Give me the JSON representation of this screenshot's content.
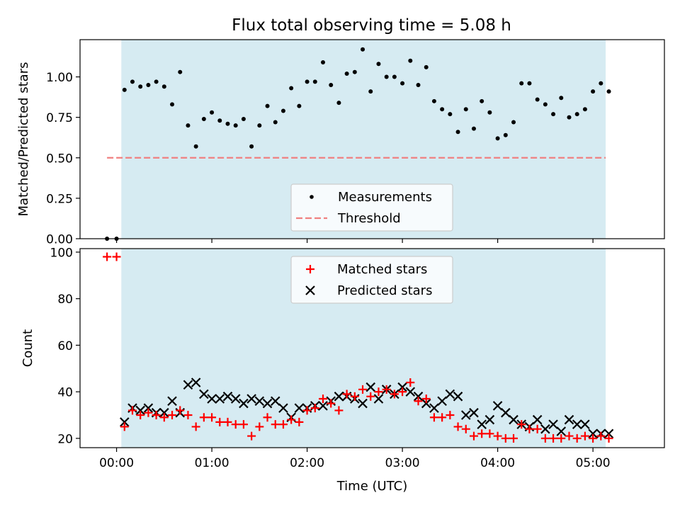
{
  "title": "Flux total observing time = 5.08 h",
  "chart_data": [
    {
      "type": "scatter",
      "ylabel": "Matched/Predicted stars",
      "ylim": [
        0,
        1.23
      ],
      "yticks": [
        0.0,
        0.25,
        0.5,
        0.75,
        1.0
      ],
      "ytick_labels": [
        "0.00",
        "0.25",
        "0.50",
        "0.75",
        "1.00"
      ],
      "observing_window": [
        "00:03",
        "05:08"
      ],
      "threshold": {
        "name": "Threshold",
        "value": 0.5,
        "x_range": [
          "-00:06",
          "05:08"
        ],
        "color": "#f08080"
      },
      "legend": {
        "placement": "lower center",
        "entries": [
          "Measurements",
          "Threshold"
        ]
      },
      "series": [
        {
          "name": "Measurements",
          "color": "#000000",
          "x": [
            "-00:06",
            "-00:00",
            "00:05",
            "00:10",
            "00:15",
            "00:20",
            "00:25",
            "00:30",
            "00:35",
            "00:40",
            "00:45",
            "00:50",
            "00:55",
            "01:00",
            "01:05",
            "01:10",
            "01:15",
            "01:20",
            "01:25",
            "01:30",
            "01:35",
            "01:40",
            "01:45",
            "01:50",
            "01:55",
            "02:00",
            "02:05",
            "02:10",
            "02:15",
            "02:20",
            "02:25",
            "02:30",
            "02:35",
            "02:40",
            "02:45",
            "02:50",
            "02:55",
            "03:00",
            "03:05",
            "03:10",
            "03:15",
            "03:20",
            "03:25",
            "03:30",
            "03:35",
            "03:40",
            "03:45",
            "03:50",
            "03:55",
            "04:00",
            "04:05",
            "04:10",
            "04:15",
            "04:20",
            "04:25",
            "04:30",
            "04:35",
            "04:40",
            "04:45",
            "04:50",
            "04:55",
            "05:00",
            "05:05",
            "05:10"
          ],
          "y": [
            0.0,
            0.0,
            0.92,
            0.97,
            0.94,
            0.95,
            0.97,
            0.94,
            0.83,
            1.03,
            0.7,
            0.57,
            0.74,
            0.78,
            0.73,
            0.71,
            0.7,
            0.74,
            0.57,
            0.7,
            0.82,
            0.72,
            0.79,
            0.93,
            0.82,
            0.97,
            0.97,
            1.09,
            0.95,
            0.84,
            1.02,
            1.03,
            1.17,
            0.91,
            1.08,
            1.0,
            1.0,
            0.96,
            1.1,
            0.95,
            1.06,
            0.85,
            0.8,
            0.77,
            0.66,
            0.8,
            0.68,
            0.85,
            0.78,
            0.62,
            0.64,
            0.72,
            0.96,
            0.96,
            0.86,
            0.83,
            0.77,
            0.87,
            0.75,
            0.77,
            0.8,
            0.91,
            0.96,
            0.91
          ]
        }
      ]
    },
    {
      "type": "scatter",
      "xlabel": "Time (UTC)",
      "ylabel": "Count",
      "ylim": [
        16,
        101.5
      ],
      "yticks": [
        20,
        40,
        60,
        80,
        100
      ],
      "ytick_labels": [
        "20",
        "40",
        "60",
        "80",
        "100"
      ],
      "xticks": [
        "00:00",
        "01:00",
        "02:00",
        "03:00",
        "04:00",
        "05:00"
      ],
      "xlim": [
        "-00:23",
        "05:45"
      ],
      "observing_window": [
        "00:03",
        "05:08"
      ],
      "legend": {
        "placement": "upper center",
        "entries": [
          "Matched stars",
          "Predicted stars"
        ]
      },
      "series": [
        {
          "name": "Matched stars",
          "marker": "plus",
          "color": "#ff0000",
          "x": [
            "-00:06",
            "-00:00",
            "00:05",
            "00:10",
            "00:15",
            "00:20",
            "00:25",
            "00:30",
            "00:35",
            "00:40",
            "00:45",
            "00:50",
            "00:55",
            "01:00",
            "01:05",
            "01:10",
            "01:15",
            "01:20",
            "01:25",
            "01:30",
            "01:35",
            "01:40",
            "01:45",
            "01:50",
            "01:55",
            "02:00",
            "02:05",
            "02:10",
            "02:15",
            "02:20",
            "02:25",
            "02:30",
            "02:35",
            "02:40",
            "02:45",
            "02:50",
            "02:55",
            "03:00",
            "03:05",
            "03:10",
            "03:15",
            "03:20",
            "03:25",
            "03:30",
            "03:35",
            "03:40",
            "03:45",
            "03:50",
            "03:55",
            "04:00",
            "04:05",
            "04:10",
            "04:15",
            "04:20",
            "04:25",
            "04:30",
            "04:35",
            "04:40",
            "04:45",
            "04:50",
            "04:55",
            "05:00",
            "05:05",
            "05:10"
          ],
          "y": [
            98,
            98,
            25,
            32,
            30,
            31,
            30,
            29,
            30,
            32,
            30,
            25,
            29,
            29,
            27,
            27,
            26,
            26,
            21,
            25,
            29,
            26,
            26,
            28,
            27,
            32,
            33,
            37,
            35,
            32,
            39,
            38,
            41,
            38,
            40,
            41,
            39,
            40,
            44,
            36,
            37,
            29,
            29,
            30,
            25,
            24,
            21,
            22,
            22,
            21,
            20,
            20,
            26,
            24,
            24,
            20,
            20,
            20,
            21,
            20,
            21,
            20,
            21,
            20
          ]
        },
        {
          "name": "Predicted stars",
          "marker": "x",
          "color": "#000000",
          "x": [
            "00:05",
            "00:10",
            "00:15",
            "00:20",
            "00:25",
            "00:30",
            "00:35",
            "00:40",
            "00:45",
            "00:50",
            "00:55",
            "01:00",
            "01:05",
            "01:10",
            "01:15",
            "01:20",
            "01:25",
            "01:30",
            "01:35",
            "01:40",
            "01:45",
            "01:50",
            "01:55",
            "02:00",
            "02:05",
            "02:10",
            "02:15",
            "02:20",
            "02:25",
            "02:30",
            "02:35",
            "02:40",
            "02:45",
            "02:50",
            "02:55",
            "03:00",
            "03:05",
            "03:10",
            "03:15",
            "03:20",
            "03:25",
            "03:30",
            "03:35",
            "03:40",
            "03:45",
            "03:50",
            "03:55",
            "04:00",
            "04:05",
            "04:10",
            "04:15",
            "04:20",
            "04:25",
            "04:30",
            "04:35",
            "04:40",
            "04:45",
            "04:50",
            "04:55",
            "05:00",
            "05:05",
            "05:10"
          ],
          "y": [
            27,
            33,
            32,
            33,
            31,
            31,
            36,
            31,
            43,
            44,
            39,
            37,
            37,
            38,
            37,
            35,
            37,
            36,
            35,
            36,
            33,
            29,
            33,
            33,
            34,
            34,
            36,
            38,
            38,
            37,
            35,
            42,
            37,
            41,
            39,
            42,
            40,
            38,
            35,
            33,
            36,
            39,
            38,
            30,
            31,
            26,
            28,
            34,
            31,
            28,
            26,
            25,
            28,
            24,
            26,
            23,
            28,
            26,
            26,
            22,
            22,
            22
          ]
        }
      ]
    }
  ]
}
